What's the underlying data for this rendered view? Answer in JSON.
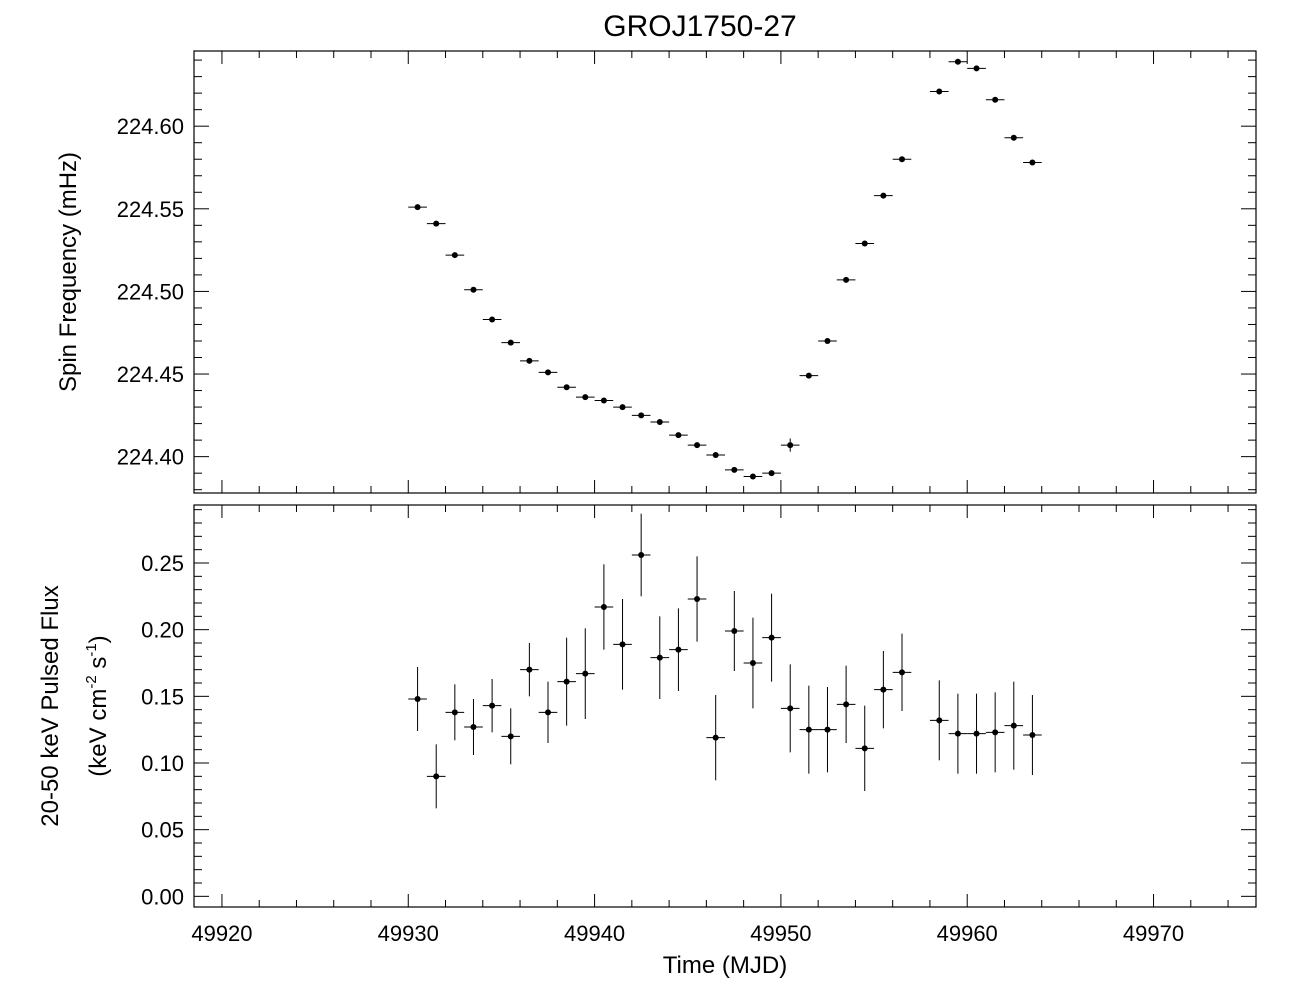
{
  "chart_data": [
    {
      "type": "scatter",
      "panel": "top",
      "title": "GROJ1750-27",
      "xlabel": "",
      "ylabel": "Spin Frequency (mHz)",
      "xlim": [
        49918.5,
        49975.5
      ],
      "ylim": [
        224.378,
        224.6455
      ],
      "yticks": [
        "224.40",
        "224.45",
        "224.50",
        "224.55",
        "224.60"
      ],
      "ytick_values": [
        224.4,
        224.45,
        224.5,
        224.55,
        224.6
      ],
      "xerr": 0.5,
      "points": [
        {
          "x": 49930.5,
          "y": 224.551,
          "yerr": 0.001
        },
        {
          "x": 49931.5,
          "y": 224.541,
          "yerr": 0.001
        },
        {
          "x": 49932.5,
          "y": 224.522,
          "yerr": 0.001
        },
        {
          "x": 49933.5,
          "y": 224.501,
          "yerr": 0.001
        },
        {
          "x": 49934.5,
          "y": 224.483,
          "yerr": 0.001
        },
        {
          "x": 49935.5,
          "y": 224.469,
          "yerr": 0.001
        },
        {
          "x": 49936.5,
          "y": 224.458,
          "yerr": 0.001
        },
        {
          "x": 49937.5,
          "y": 224.451,
          "yerr": 0.001
        },
        {
          "x": 49938.5,
          "y": 224.442,
          "yerr": 0.001
        },
        {
          "x": 49939.5,
          "y": 224.436,
          "yerr": 0.001
        },
        {
          "x": 49940.5,
          "y": 224.434,
          "yerr": 0.001
        },
        {
          "x": 49941.5,
          "y": 224.43,
          "yerr": 0.001
        },
        {
          "x": 49942.5,
          "y": 224.425,
          "yerr": 0.001
        },
        {
          "x": 49943.5,
          "y": 224.421,
          "yerr": 0.001
        },
        {
          "x": 49944.5,
          "y": 224.413,
          "yerr": 0.001
        },
        {
          "x": 49945.5,
          "y": 224.407,
          "yerr": 0.001
        },
        {
          "x": 49946.5,
          "y": 224.401,
          "yerr": 0.001
        },
        {
          "x": 49947.5,
          "y": 224.392,
          "yerr": 0.001
        },
        {
          "x": 49948.5,
          "y": 224.388,
          "yerr": 0.001
        },
        {
          "x": 49949.5,
          "y": 224.39,
          "yerr": 0.001
        },
        {
          "x": 49950.5,
          "y": 224.407,
          "yerr": 0.004
        },
        {
          "x": 49951.5,
          "y": 224.449,
          "yerr": 0.001
        },
        {
          "x": 49952.5,
          "y": 224.47,
          "yerr": 0.001
        },
        {
          "x": 49953.5,
          "y": 224.507,
          "yerr": 0.001
        },
        {
          "x": 49954.5,
          "y": 224.529,
          "yerr": 0.001
        },
        {
          "x": 49955.5,
          "y": 224.558,
          "yerr": 0.001
        },
        {
          "x": 49956.5,
          "y": 224.58,
          "yerr": 0.001
        },
        {
          "x": 49958.5,
          "y": 224.621,
          "yerr": 0.001
        },
        {
          "x": 49959.5,
          "y": 224.639,
          "yerr": 0.001
        },
        {
          "x": 49960.5,
          "y": 224.635,
          "yerr": 0.001
        },
        {
          "x": 49961.5,
          "y": 224.616,
          "yerr": 0.001
        },
        {
          "x": 49962.5,
          "y": 224.593,
          "yerr": 0.001
        },
        {
          "x": 49963.5,
          "y": 224.578,
          "yerr": 0.001
        }
      ]
    },
    {
      "type": "scatter",
      "panel": "bottom",
      "title": "",
      "xlabel": "Time (MJD)",
      "ylabel_line1": "20-50 keV Pulsed Flux",
      "ylabel_line2_pre": "(keV cm",
      "ylabel_line2_sup1": "-2",
      "ylabel_line2_mid": " s",
      "ylabel_line2_sup2": "-1",
      "ylabel_line2_post": ")",
      "xlim": [
        49918.5,
        49975.5
      ],
      "ylim": [
        -0.008,
        0.2935
      ],
      "xticks": [
        "49920",
        "49930",
        "49940",
        "49950",
        "49960",
        "49970"
      ],
      "xtick_values": [
        49920,
        49930,
        49940,
        49950,
        49960,
        49970
      ],
      "yticks": [
        "0.00",
        "0.05",
        "0.10",
        "0.15",
        "0.20",
        "0.25"
      ],
      "ytick_values": [
        0.0,
        0.05,
        0.1,
        0.15,
        0.2,
        0.25
      ],
      "xerr": 0.5,
      "points": [
        {
          "x": 49930.5,
          "y": 0.148,
          "yerr": 0.024
        },
        {
          "x": 49931.5,
          "y": 0.09,
          "yerr": 0.024
        },
        {
          "x": 49932.5,
          "y": 0.138,
          "yerr": 0.021
        },
        {
          "x": 49933.5,
          "y": 0.127,
          "yerr": 0.021
        },
        {
          "x": 49934.5,
          "y": 0.143,
          "yerr": 0.02
        },
        {
          "x": 49935.5,
          "y": 0.12,
          "yerr": 0.021
        },
        {
          "x": 49936.5,
          "y": 0.17,
          "yerr": 0.02
        },
        {
          "x": 49937.5,
          "y": 0.138,
          "yerr": 0.023
        },
        {
          "x": 49938.5,
          "y": 0.161,
          "yerr": 0.033
        },
        {
          "x": 49939.5,
          "y": 0.167,
          "yerr": 0.034
        },
        {
          "x": 49940.5,
          "y": 0.217,
          "yerr": 0.032
        },
        {
          "x": 49941.5,
          "y": 0.189,
          "yerr": 0.034
        },
        {
          "x": 49942.5,
          "y": 0.256,
          "yerr": 0.031
        },
        {
          "x": 49943.5,
          "y": 0.179,
          "yerr": 0.031
        },
        {
          "x": 49944.5,
          "y": 0.185,
          "yerr": 0.031
        },
        {
          "x": 49945.5,
          "y": 0.223,
          "yerr": 0.032
        },
        {
          "x": 49946.5,
          "y": 0.119,
          "yerr": 0.032
        },
        {
          "x": 49947.5,
          "y": 0.199,
          "yerr": 0.03
        },
        {
          "x": 49948.5,
          "y": 0.175,
          "yerr": 0.034
        },
        {
          "x": 49949.5,
          "y": 0.194,
          "yerr": 0.033
        },
        {
          "x": 49950.5,
          "y": 0.141,
          "yerr": 0.033
        },
        {
          "x": 49951.5,
          "y": 0.125,
          "yerr": 0.033
        },
        {
          "x": 49952.5,
          "y": 0.125,
          "yerr": 0.032
        },
        {
          "x": 49953.5,
          "y": 0.144,
          "yerr": 0.029
        },
        {
          "x": 49954.5,
          "y": 0.111,
          "yerr": 0.032
        },
        {
          "x": 49955.5,
          "y": 0.155,
          "yerr": 0.029
        },
        {
          "x": 49956.5,
          "y": 0.168,
          "yerr": 0.029
        },
        {
          "x": 49958.5,
          "y": 0.132,
          "yerr": 0.03
        },
        {
          "x": 49959.5,
          "y": 0.122,
          "yerr": 0.03
        },
        {
          "x": 49960.5,
          "y": 0.122,
          "yerr": 0.03
        },
        {
          "x": 49961.5,
          "y": 0.123,
          "yerr": 0.03
        },
        {
          "x": 49962.5,
          "y": 0.128,
          "yerr": 0.033
        },
        {
          "x": 49963.5,
          "y": 0.121,
          "yerr": 0.03
        }
      ]
    }
  ]
}
